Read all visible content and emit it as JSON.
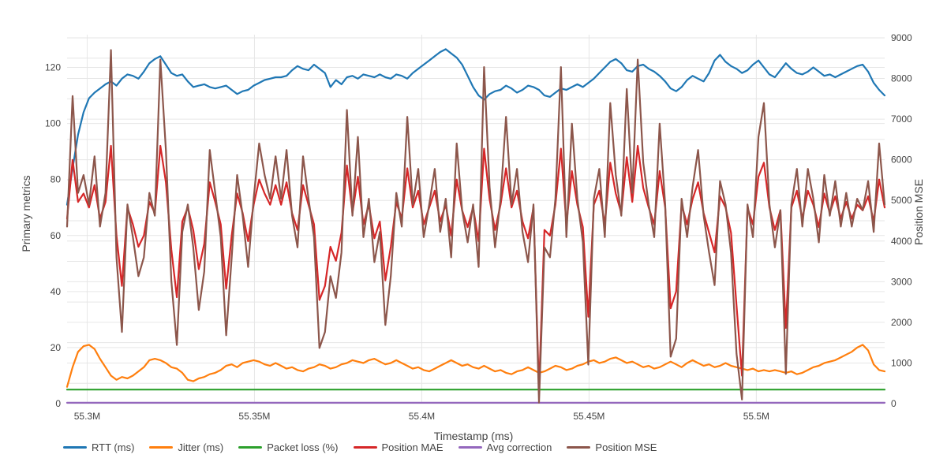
{
  "figure_title": "",
  "axes": {
    "x_title": "Timestamp (ms)",
    "y_left_title": "Primary metrics",
    "y_right_title": "Position MSE"
  },
  "colors": {
    "rtt": "#1f77b4",
    "jitter": "#ff7f0e",
    "packet_loss": "#2ca02c",
    "position_mae": "#d62728",
    "avg_correction": "#9467bd",
    "position_mse": "#8c564b",
    "grid": "#e6e6e6",
    "text": "#444444",
    "background": "#ffffff"
  },
  "chart_data": {
    "type": "line",
    "title": "",
    "xlabel": "Timestamp (ms)",
    "ylabel_left": "Primary metrics",
    "ylabel_right": "Position MSE",
    "legend_position": "bottom-left-horizontal",
    "grid": true,
    "x_start": 55294000,
    "x_step": 1640,
    "n_points": 150,
    "x_ticks": [
      {
        "value": 55300000,
        "label": "55.3M"
      },
      {
        "value": 55350000,
        "label": "55.35M"
      },
      {
        "value": 55400000,
        "label": "55.4M"
      },
      {
        "value": 55450000,
        "label": "55.45M"
      },
      {
        "value": 55500000,
        "label": "55.5M"
      }
    ],
    "y_left": {
      "range": [
        0,
        130
      ],
      "ticks": [
        0,
        20,
        40,
        60,
        80,
        100,
        120
      ]
    },
    "y_right": {
      "range": [
        0,
        9000
      ],
      "ticks": [
        0,
        1000,
        2000,
        3000,
        4000,
        5000,
        6000,
        7000,
        8000,
        9000
      ],
      "grid_step": 500
    },
    "series": [
      {
        "name": "RTT (ms)",
        "color": "#1f77b4",
        "axis": "left",
        "values": [
          71,
          84,
          96,
          104,
          109,
          111,
          112.5,
          114,
          115,
          113.5,
          116,
          117.5,
          117,
          116,
          118.5,
          121.5,
          123,
          124,
          121,
          118,
          117,
          117.5,
          115,
          113,
          113.5,
          114,
          113,
          112.5,
          113,
          113.5,
          112,
          110.5,
          111.5,
          112,
          113.5,
          114.5,
          115.5,
          116,
          116.5,
          116.5,
          117,
          119,
          120.5,
          119.5,
          119,
          121,
          119.5,
          118,
          113,
          115.5,
          114,
          116.5,
          117,
          116,
          117.5,
          117,
          116.5,
          117.5,
          116.5,
          116,
          117.5,
          117,
          116,
          118,
          119.5,
          121,
          122.5,
          124,
          125.5,
          126.5,
          125,
          123.5,
          121,
          117,
          113,
          110,
          108.5,
          110.5,
          111.5,
          112,
          113.5,
          112.5,
          111,
          112,
          113.5,
          113,
          112,
          110,
          109.5,
          111,
          112.5,
          112,
          113,
          114,
          113,
          114.5,
          116,
          118,
          120,
          122,
          123,
          121.5,
          119,
          118.5,
          120.5,
          121,
          119.5,
          118.5,
          117,
          115,
          112.5,
          111.5,
          113,
          115.5,
          117,
          116,
          115,
          118,
          122.5,
          124.5,
          122,
          120.5,
          119.5,
          118,
          119,
          121,
          122.5,
          120,
          117.5,
          116.5,
          119,
          121.5,
          119.5,
          118,
          117.5,
          118.5,
          120,
          118.5,
          117,
          117.5,
          116.5,
          117.5,
          118.5,
          119.5,
          120.5,
          121,
          118.5,
          114.5,
          112,
          110
        ]
      },
      {
        "name": "Jitter (ms)",
        "color": "#ff7f0e",
        "axis": "left",
        "values": [
          6,
          13,
          18.5,
          20.5,
          21,
          19.5,
          16,
          13,
          10,
          8.5,
          9.5,
          9,
          10,
          11.5,
          13,
          15.5,
          16,
          15.5,
          14.5,
          13,
          12.5,
          11,
          8.5,
          8,
          9,
          9.5,
          10.5,
          11,
          12,
          13.5,
          14,
          13,
          14.5,
          15,
          15.5,
          15,
          14,
          13.5,
          14.5,
          13.5,
          12.5,
          13,
          12,
          11.5,
          12.5,
          13,
          14,
          13.5,
          12.5,
          13,
          14,
          14.5,
          15.5,
          15,
          14.5,
          15.5,
          16,
          15,
          14,
          14.5,
          15.5,
          14.5,
          13.5,
          12.5,
          13,
          12,
          11.5,
          12.5,
          13.5,
          14.5,
          15.5,
          14.5,
          13.5,
          14,
          13,
          12.5,
          13.5,
          12.5,
          11.5,
          12,
          11,
          10.5,
          11.5,
          12,
          13,
          12,
          11,
          11.5,
          12.5,
          13.5,
          13,
          12,
          12.5,
          13.5,
          14,
          15,
          15.5,
          14.5,
          15,
          16,
          16.5,
          15.5,
          14.5,
          15,
          14,
          13,
          13.5,
          12.5,
          13,
          14,
          15,
          14,
          13,
          14.5,
          15.5,
          14.5,
          13.5,
          14,
          13,
          13.5,
          14.5,
          13.5,
          13,
          12.5,
          12,
          12.5,
          11.5,
          12,
          11.5,
          12,
          11.5,
          11,
          11.5,
          10.5,
          11,
          12,
          13,
          13.5,
          14.5,
          15,
          15.5,
          16.5,
          17.5,
          18.5,
          20,
          21,
          19,
          14,
          12,
          11.5
        ]
      },
      {
        "name": "Packet loss (%)",
        "color": "#2ca02c",
        "axis": "left",
        "constant": 5
      },
      {
        "name": "Position MAE",
        "color": "#d62728",
        "axis": "left",
        "values": [
          66,
          87,
          72,
          75,
          70,
          78,
          66,
          72,
          92,
          60,
          42,
          70,
          64,
          56,
          60,
          72,
          68,
          92,
          79,
          55,
          38,
          65,
          70,
          62,
          48,
          57,
          79,
          72,
          64,
          41,
          60,
          75,
          68,
          58,
          71,
          80,
          75,
          71,
          78,
          71,
          79,
          68,
          62,
          78,
          71,
          64,
          37,
          42,
          56,
          51,
          61,
          85,
          68,
          81,
          64,
          71,
          59,
          65,
          44,
          56,
          72,
          66,
          84,
          70,
          76,
          64,
          70,
          76,
          65,
          71,
          60,
          80,
          69,
          63,
          70,
          58,
          91,
          73,
          62,
          71,
          84,
          70,
          76,
          65,
          59,
          70,
          5,
          62,
          60,
          71,
          91,
          64,
          83,
          71,
          63,
          31,
          71,
          76,
          64,
          86,
          75,
          68,
          88,
          72,
          92,
          77,
          70,
          64,
          83,
          70,
          34,
          40,
          71,
          64,
          73,
          79,
          68,
          61,
          54,
          74,
          70,
          61,
          35,
          10,
          70,
          64,
          81,
          86,
          70,
          62,
          69,
          27,
          70,
          76,
          66,
          76,
          71,
          63,
          75,
          68,
          74,
          66,
          72,
          66,
          71,
          69,
          74,
          65,
          80,
          70
        ]
      },
      {
        "name": "Avg correction",
        "color": "#9467bd",
        "axis": "left",
        "constant": 0.3
      },
      {
        "name": "Position MSE",
        "color": "#8c564b",
        "axis": "right",
        "values": [
          4356,
          7569,
          5184,
          5625,
          4900,
          6084,
          4356,
          5184,
          8700,
          3600,
          1764,
          4900,
          4096,
          3136,
          3600,
          5184,
          4624,
          8464,
          6241,
          3025,
          1444,
          4225,
          4900,
          3844,
          2304,
          3249,
          6241,
          5184,
          4096,
          1681,
          3600,
          5625,
          4624,
          3364,
          5041,
          6400,
          5625,
          5041,
          6084,
          5041,
          6241,
          4624,
          3844,
          6084,
          5041,
          4096,
          1369,
          1764,
          3136,
          2601,
          3721,
          7225,
          4624,
          6561,
          4096,
          5041,
          3481,
          4225,
          1936,
          3136,
          5184,
          4356,
          7056,
          4900,
          5776,
          4096,
          4900,
          5776,
          4225,
          5041,
          3600,
          6400,
          4761,
          3969,
          4900,
          3364,
          8281,
          5329,
          3844,
          5041,
          7056,
          4900,
          5776,
          4225,
          3481,
          4900,
          25,
          3844,
          3600,
          5041,
          8281,
          4096,
          6889,
          5041,
          3969,
          961,
          5041,
          5776,
          4096,
          7396,
          5625,
          4624,
          7744,
          5184,
          8464,
          5929,
          4900,
          4096,
          6889,
          4900,
          1156,
          1600,
          5041,
          4096,
          5329,
          6241,
          4624,
          3721,
          2916,
          5476,
          4900,
          3721,
          1225,
          100,
          4900,
          4096,
          6561,
          7396,
          4900,
          3844,
          4761,
          729,
          4900,
          5776,
          4356,
          5776,
          5041,
          3969,
          5625,
          4624,
          5476,
          4356,
          5184,
          4356,
          5041,
          4761,
          5476,
          4225,
          6400,
          4900
        ]
      }
    ]
  },
  "legend": {
    "items": [
      {
        "label": "RTT (ms)",
        "color": "#1f77b4"
      },
      {
        "label": "Jitter (ms)",
        "color": "#ff7f0e"
      },
      {
        "label": "Packet loss (%)",
        "color": "#2ca02c"
      },
      {
        "label": "Position MAE",
        "color": "#d62728"
      },
      {
        "label": "Avg correction",
        "color": "#9467bd"
      },
      {
        "label": "Position MSE",
        "color": "#8c564b"
      }
    ]
  }
}
